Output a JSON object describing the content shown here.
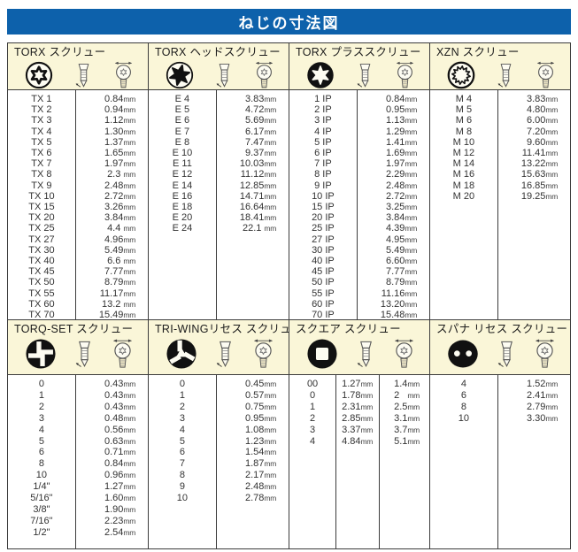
{
  "title": "ねじの寸法図",
  "colors": {
    "banner_blue": "#0d61ab",
    "banner_text": "#ffffff",
    "header_cream": "#faf6d8",
    "border": "#3c3c3c"
  },
  "panel_header_icons": [
    "recess-shape-icon",
    "screw-side-view-icon",
    "screw-head-top-view-icon"
  ],
  "sections": [
    {
      "panels": [
        {
          "id": "torx",
          "title": "TORX スクリュー",
          "icon": "torx-internal",
          "cols": 2,
          "rows": [
            [
              "TX 1",
              "0.84mm"
            ],
            [
              "TX 2",
              "0.94mm"
            ],
            [
              "TX 3",
              "1.12mm"
            ],
            [
              "TX 4",
              "1.30mm"
            ],
            [
              "TX 5",
              "1.37mm"
            ],
            [
              "TX 6",
              "1.65mm"
            ],
            [
              "TX 7",
              "1.97mm"
            ],
            [
              "TX 8",
              "2.3 mm"
            ],
            [
              "TX 9",
              "2.48mm"
            ],
            [
              "TX 10",
              "2.72mm"
            ],
            [
              "TX 15",
              "3.26mm"
            ],
            [
              "TX 20",
              "3.84mm"
            ],
            [
              "TX 25",
              "4.4 mm"
            ],
            [
              "TX 27",
              "4.96mm"
            ],
            [
              "TX 30",
              "5.49mm"
            ],
            [
              "TX 40",
              "6.6 mm"
            ],
            [
              "TX 45",
              "7.77mm"
            ],
            [
              "TX 50",
              "8.79mm"
            ],
            [
              "TX 55",
              "11.17mm"
            ],
            [
              "TX 60",
              "13.2 mm"
            ],
            [
              "TX 70",
              "15.49mm"
            ]
          ]
        },
        {
          "id": "torx-head",
          "title": "TORX ヘッドスクリュー",
          "icon": "torx-external",
          "cols": 2,
          "rows": [
            [
              "E 4",
              "3.83mm"
            ],
            [
              "E 5",
              "4.72mm"
            ],
            [
              "E 6",
              "5.69mm"
            ],
            [
              "E 7",
              "6.17mm"
            ],
            [
              "E 8",
              "7.47mm"
            ],
            [
              "E 10",
              "9.37mm"
            ],
            [
              "E 11",
              "10.03mm"
            ],
            [
              "E 12",
              "11.12mm"
            ],
            [
              "E 14",
              "12.85mm"
            ],
            [
              "E 16",
              "14.71mm"
            ],
            [
              "E 18",
              "16.64mm"
            ],
            [
              "E 20",
              "18.41mm"
            ],
            [
              "E 24",
              "22.1 mm"
            ]
          ]
        },
        {
          "id": "torx-plus",
          "title": "TORX プラススクリュー",
          "icon": "torx-plus",
          "cols": 2,
          "rows": [
            [
              "1 IP",
              "0.84mm"
            ],
            [
              "2 IP",
              "0.95mm"
            ],
            [
              "3 IP",
              "1.13mm"
            ],
            [
              "4 IP",
              "1.29mm"
            ],
            [
              "5 IP",
              "1.41mm"
            ],
            [
              "6 IP",
              "1.69mm"
            ],
            [
              "7 IP",
              "1.97mm"
            ],
            [
              "8 IP",
              "2.29mm"
            ],
            [
              "9 IP",
              "2.48mm"
            ],
            [
              "10 IP",
              "2.72mm"
            ],
            [
              "15 IP",
              "3.25mm"
            ],
            [
              "20 IP",
              "3.84mm"
            ],
            [
              "25 IP",
              "4.39mm"
            ],
            [
              "27 IP",
              "4.95mm"
            ],
            [
              "30 IP",
              "5.49mm"
            ],
            [
              "40 IP",
              "6.60mm"
            ],
            [
              "45 IP",
              "7.77mm"
            ],
            [
              "50 IP",
              "8.79mm"
            ],
            [
              "55 IP",
              "11.16mm"
            ],
            [
              "60 IP",
              "13.20mm"
            ],
            [
              "70 IP",
              "15.48mm"
            ]
          ]
        },
        {
          "id": "xzn",
          "title": "XZN スクリュー",
          "icon": "xzn",
          "cols": 2,
          "rows": [
            [
              "M 4",
              "3.83mm"
            ],
            [
              "M 5",
              "4.80mm"
            ],
            [
              "M 6",
              "6.00mm"
            ],
            [
              "M 8",
              "7.20mm"
            ],
            [
              "M 10",
              "9.60mm"
            ],
            [
              "M 12",
              "11.41mm"
            ],
            [
              "M 14",
              "13.22mm"
            ],
            [
              "M 16",
              "15.63mm"
            ],
            [
              "M 18",
              "16.85mm"
            ],
            [
              "M 20",
              "19.25mm"
            ]
          ]
        }
      ]
    },
    {
      "panels": [
        {
          "id": "torq-set",
          "title": "TORQ-SET スクリュー",
          "icon": "torq-set",
          "cols": 2,
          "rows": [
            [
              "0",
              "0.43mm"
            ],
            [
              "1",
              "0.43mm"
            ],
            [
              "2",
              "0.43mm"
            ],
            [
              "3",
              "0.48mm"
            ],
            [
              "4",
              "0.56mm"
            ],
            [
              "5",
              "0.63mm"
            ],
            [
              "6",
              "0.71mm"
            ],
            [
              "8",
              "0.84mm"
            ],
            [
              "10",
              "0.96mm"
            ],
            [
              "1/4\"",
              "1.27mm"
            ],
            [
              "5/16\"",
              "1.60mm"
            ],
            [
              "3/8\"",
              "1.90mm"
            ],
            [
              "7/16\"",
              "2.23mm"
            ],
            [
              "1/2\"",
              "2.54mm"
            ]
          ]
        },
        {
          "id": "tri-wing",
          "title": "TRI-WINGリセス スクリュー",
          "icon": "tri-wing",
          "cols": 2,
          "rows": [
            [
              "0",
              "0.45mm"
            ],
            [
              "1",
              "0.57mm"
            ],
            [
              "2",
              "0.75mm"
            ],
            [
              "3",
              "0.95mm"
            ],
            [
              "4",
              "1.08mm"
            ],
            [
              "5",
              "1.23mm"
            ],
            [
              "6",
              "1.54mm"
            ],
            [
              "7",
              "1.87mm"
            ],
            [
              "8",
              "2.17mm"
            ],
            [
              "9",
              "2.48mm"
            ],
            [
              "10",
              "2.78mm"
            ]
          ]
        },
        {
          "id": "square",
          "title": "スクエア スクリュー",
          "icon": "square",
          "cols": 3,
          "rows": [
            [
              "00",
              "1.27mm",
              "1.4mm"
            ],
            [
              "0",
              "1.78mm",
              "2   mm"
            ],
            [
              "1",
              "2.31mm",
              "2.5mm"
            ],
            [
              "2",
              "2.85mm",
              "3.1mm"
            ],
            [
              "3",
              "3.37mm",
              "3.7mm"
            ],
            [
              "4",
              "4.84mm",
              "5.1mm"
            ]
          ]
        },
        {
          "id": "spanner",
          "title": "スパナ リセス スクリュー",
          "icon": "spanner",
          "cols": 2,
          "rows": [
            [
              "4",
              "1.52mm"
            ],
            [
              "6",
              "2.41mm"
            ],
            [
              "8",
              "2.79mm"
            ],
            [
              "10",
              "3.30mm"
            ]
          ]
        }
      ]
    }
  ]
}
